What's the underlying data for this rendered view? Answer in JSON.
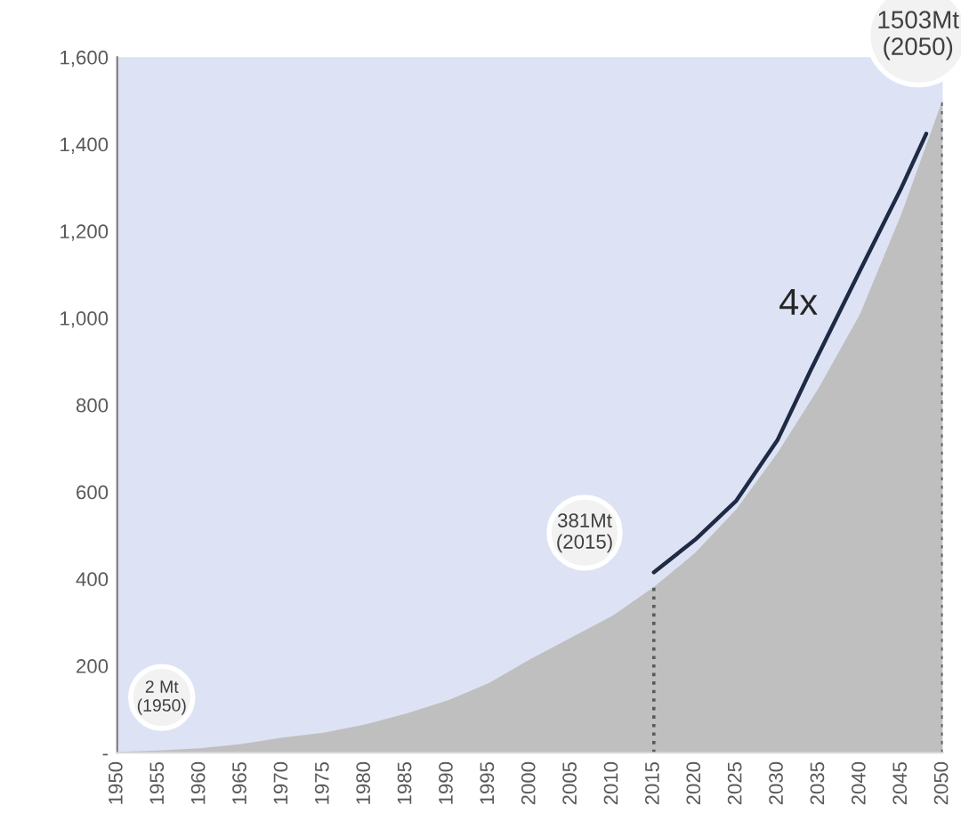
{
  "chart_data": {
    "type": "area",
    "x": [
      1950,
      1955,
      1960,
      1965,
      1970,
      1975,
      1980,
      1985,
      1990,
      1995,
      2000,
      2005,
      2010,
      2015,
      2020,
      2025,
      2030,
      2035,
      2040,
      2045,
      2050
    ],
    "series": [
      {
        "color": "#bfbfbf",
        "values": [
          2,
          5,
          10,
          20,
          35,
          46,
          65,
          90,
          120,
          160,
          215,
          265,
          315,
          381,
          460,
          560,
          690,
          840,
          1010,
          1240,
          1503
        ]
      },
      {
        "type": "line",
        "color": "#1f2a44",
        "x": [
          2015,
          2020,
          2025,
          2030,
          2034,
          2040,
          2045,
          2048
        ],
        "values": [
          415,
          490,
          580,
          720,
          880,
          1110,
          1300,
          1424
        ]
      }
    ],
    "xlim": [
      1950,
      2050
    ],
    "xticks": [
      1950,
      1955,
      1960,
      1965,
      1970,
      1975,
      1980,
      1985,
      1990,
      1995,
      2000,
      2005,
      2010,
      2015,
      2020,
      2025,
      2030,
      2035,
      2040,
      2045,
      2050
    ],
    "ylim": [
      0,
      1600
    ],
    "yticks": [
      {
        "value": 0,
        "label": "-"
      },
      200,
      400,
      {
        "value": 600,
        "label": "600"
      },
      800,
      {
        "value": 1000,
        "label": "1,000"
      },
      {
        "value": 1200,
        "label": "1,200"
      },
      {
        "value": 1400,
        "label": "1,400"
      },
      {
        "value": 1600,
        "label": "1,600"
      }
    ],
    "ref_lines": [
      {
        "axis": "x",
        "value": 2015,
        "color": "#595959",
        "line_style": "dotted"
      },
      {
        "axis": "x",
        "value": 2050,
        "color": "#595959",
        "line_style": "dotted"
      }
    ],
    "annotations": [
      {
        "text": "2 Mt\n(1950)",
        "x": 1950,
        "y": 2
      },
      {
        "text": "381Mt\n(2015)",
        "x": 2015,
        "y": 381
      },
      {
        "text": "1503Mt\n(2050)",
        "x": 2050,
        "y": 1503
      },
      "4x"
    ],
    "grid": false
  }
}
